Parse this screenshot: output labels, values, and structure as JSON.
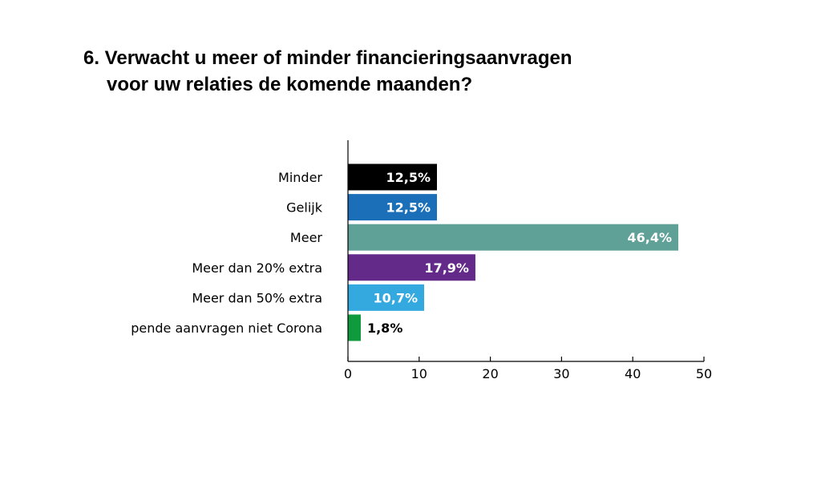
{
  "chart_data": {
    "type": "bar",
    "orientation": "horizontal",
    "title_line1": "6. Verwacht u meer of minder financieringsaanvragen",
    "title_line2": "voor uw relaties de komende maanden?",
    "categories": [
      "Minder",
      "Gelijk",
      "Meer",
      "Meer dan 20% extra",
      "Meer dan 50% extra",
      "pende aanvragen niet Corona"
    ],
    "values": [
      12.5,
      12.5,
      46.4,
      17.9,
      10.7,
      1.8
    ],
    "value_labels": [
      "12,5%",
      "12,5%",
      "46,4%",
      "17,9%",
      "10,7%",
      "1,8%"
    ],
    "colors": [
      "#000000",
      "#1a6fb8",
      "#5fa097",
      "#642a8a",
      "#33a9e0",
      "#0f9a3e"
    ],
    "xlim": [
      0,
      50
    ],
    "xticks": [
      0,
      10,
      20,
      30,
      40,
      50
    ],
    "xtick_labels": [
      "0",
      "10",
      "20",
      "30",
      "40",
      "50"
    ],
    "xlabel": "",
    "ylabel": "",
    "grid": false,
    "legend": "none"
  }
}
